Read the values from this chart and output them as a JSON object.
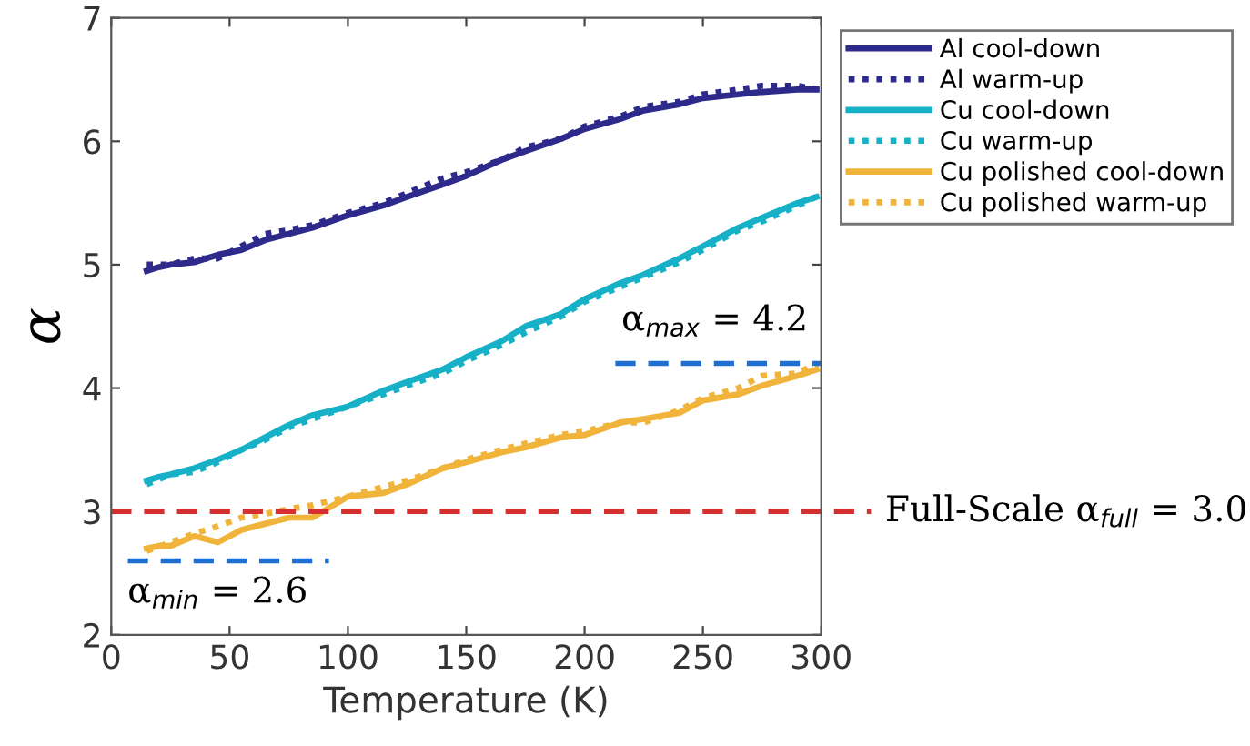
{
  "chart_data": {
    "type": "line",
    "xlabel": "Temperature (K)",
    "ylabel": "α",
    "xlim": [
      0,
      300
    ],
    "xticks": [
      0,
      50,
      100,
      150,
      200,
      250,
      300
    ],
    "ylim": [
      2,
      7
    ],
    "yticks": [
      2,
      3,
      4,
      5,
      6,
      7
    ],
    "grid": false,
    "legend": "right",
    "series": [
      {
        "name": "Al cool-down",
        "color": "#2e2a8c",
        "line_style": "solid",
        "x": [
          15,
          20,
          25,
          35,
          45,
          55,
          65,
          75,
          85,
          100,
          115,
          125,
          140,
          150,
          165,
          175,
          190,
          200,
          215,
          225,
          240,
          250,
          265,
          275,
          290,
          298
        ],
        "values": [
          4.95,
          4.98,
          5.0,
          5.02,
          5.08,
          5.12,
          5.2,
          5.25,
          5.3,
          5.4,
          5.48,
          5.55,
          5.65,
          5.72,
          5.85,
          5.92,
          6.02,
          6.1,
          6.18,
          6.25,
          6.3,
          6.35,
          6.38,
          6.4,
          6.42,
          6.42
        ]
      },
      {
        "name": "Al warm-up",
        "color": "#2e2a8c",
        "line_style": "dotted",
        "x": [
          15,
          25,
          35,
          45,
          55,
          65,
          75,
          85,
          100,
          115,
          125,
          140,
          150,
          165,
          175,
          190,
          200,
          215,
          225,
          240,
          250,
          265,
          275,
          290,
          298
        ],
        "values": [
          5.0,
          5.0,
          5.05,
          5.05,
          5.15,
          5.25,
          5.28,
          5.32,
          5.42,
          5.5,
          5.58,
          5.7,
          5.75,
          5.85,
          5.95,
          6.02,
          6.12,
          6.2,
          6.28,
          6.32,
          6.38,
          6.42,
          6.45,
          6.45,
          6.42
        ]
      },
      {
        "name": "Cu cool-down",
        "color": "#17b1c7",
        "line_style": "solid",
        "x": [
          15,
          20,
          25,
          35,
          45,
          55,
          65,
          75,
          85,
          100,
          115,
          125,
          140,
          150,
          165,
          175,
          190,
          200,
          215,
          225,
          240,
          250,
          265,
          275,
          290,
          298
        ],
        "values": [
          3.25,
          3.28,
          3.3,
          3.35,
          3.42,
          3.5,
          3.6,
          3.7,
          3.78,
          3.85,
          3.98,
          4.05,
          4.15,
          4.25,
          4.38,
          4.5,
          4.6,
          4.72,
          4.85,
          4.92,
          5.05,
          5.15,
          5.3,
          5.38,
          5.5,
          5.55
        ]
      },
      {
        "name": "Cu warm-up",
        "color": "#17b1c7",
        "line_style": "dotted",
        "x": [
          15,
          25,
          35,
          45,
          55,
          65,
          75,
          85,
          100,
          115,
          125,
          140,
          150,
          165,
          175,
          190,
          200,
          215,
          225,
          240,
          250,
          265,
          275,
          290,
          298
        ],
        "values": [
          3.22,
          3.3,
          3.32,
          3.4,
          3.5,
          3.58,
          3.68,
          3.75,
          3.85,
          3.95,
          4.02,
          4.12,
          4.22,
          4.35,
          4.45,
          4.58,
          4.7,
          4.82,
          4.9,
          5.02,
          5.12,
          5.28,
          5.35,
          5.48,
          5.55
        ]
      },
      {
        "name": "Cu polished cool-down",
        "color": "#f1b43b",
        "line_style": "solid",
        "x": [
          15,
          20,
          25,
          35,
          45,
          55,
          65,
          75,
          85,
          100,
          115,
          125,
          140,
          150,
          165,
          175,
          190,
          200,
          215,
          225,
          240,
          250,
          265,
          275,
          290,
          298
        ],
        "values": [
          2.7,
          2.72,
          2.72,
          2.8,
          2.75,
          2.85,
          2.9,
          2.95,
          2.95,
          3.12,
          3.15,
          3.22,
          3.35,
          3.4,
          3.48,
          3.52,
          3.6,
          3.62,
          3.72,
          3.75,
          3.8,
          3.9,
          3.95,
          4.02,
          4.1,
          4.15
        ]
      },
      {
        "name": "Cu polished warm-up",
        "color": "#f1b43b",
        "line_style": "dotted",
        "x": [
          15,
          25,
          35,
          45,
          55,
          65,
          75,
          85,
          100,
          115,
          125,
          140,
          150,
          165,
          175,
          190,
          200,
          215,
          225,
          240,
          250,
          265,
          275,
          290,
          298
        ],
        "values": [
          2.68,
          2.75,
          2.82,
          2.88,
          2.95,
          2.98,
          3.02,
          3.05,
          3.12,
          3.2,
          3.25,
          3.35,
          3.42,
          3.5,
          3.55,
          3.62,
          3.65,
          3.72,
          3.72,
          3.82,
          3.92,
          4.0,
          4.1,
          4.12,
          4.2
        ]
      },
      {
        "color": "#1f6fd0",
        "line_style": "dashed",
        "x": [
          7,
          92
        ],
        "values": [
          2.6,
          2.6
        ]
      },
      {
        "color": "#1f6fd0",
        "line_style": "dashed",
        "x": [
          213,
          300
        ],
        "values": [
          4.2,
          4.2
        ]
      }
    ],
    "ref_lines": [
      {
        "axis": "y",
        "value": 3.0,
        "label": "Full-Scale α$_{full}$ = 3.0",
        "color": "#d62f2f",
        "line_style": "dashed"
      }
    ],
    "annotations": [
      {
        "text": "α$_{min}$ = 2.6",
        "x": 45,
        "y": 2.6
      },
      {
        "text": "α$_{max}$ = 4.2",
        "x": 255,
        "y": 4.2
      }
    ]
  }
}
